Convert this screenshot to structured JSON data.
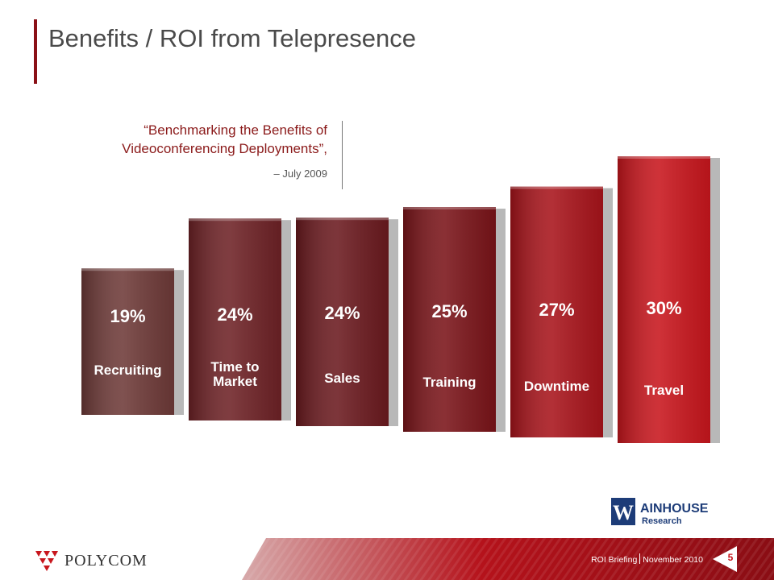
{
  "title": "Benefits / ROI from Telepresence",
  "quote": {
    "line1": "“Benchmarking the Benefits of",
    "line2": "Videoconferencing Deployments”,",
    "date": "– July 2009"
  },
  "chart_data": {
    "type": "bar",
    "title": "",
    "categories": [
      "Recruiting",
      "Time to Market",
      "Sales",
      "Training",
      "Downtime",
      "Travel"
    ],
    "category_lines": [
      [
        "Recruiting"
      ],
      [
        "Time to",
        "Market"
      ],
      [
        "Sales"
      ],
      [
        "Training"
      ],
      [
        "Downtime"
      ],
      [
        "Travel"
      ]
    ],
    "values": [
      19,
      24,
      24,
      25,
      27,
      30
    ],
    "value_labels": [
      "19%",
      "24%",
      "24%",
      "25%",
      "27%",
      "30%"
    ],
    "colors": [
      "#6e3a38",
      "#6e2226",
      "#6b1a1f",
      "#7a1419",
      "#a8141b",
      "#c8161d"
    ],
    "xlabel": "",
    "ylabel": "",
    "legend": "none",
    "grid": false
  },
  "brand": {
    "company": "POLYCOM",
    "research_logo_mark": "W",
    "research_logo_name": "AINHOUSE",
    "research_logo_sub": "Research"
  },
  "footer": {
    "left_text": "ROI Briefing",
    "right_text": "November 2010",
    "page_number": "5",
    "accent_color": "#b5121b"
  }
}
